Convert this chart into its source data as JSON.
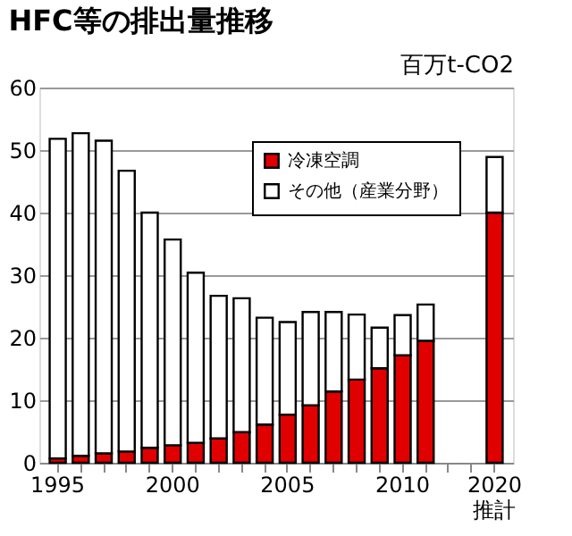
{
  "chart_data": {
    "type": "bar",
    "title": "HFC等の排出量推移",
    "ylabel": "百万t-CO2",
    "categories": [
      "1995",
      null,
      null,
      null,
      null,
      "2000",
      null,
      null,
      null,
      null,
      "2005",
      null,
      null,
      null,
      null,
      "2010",
      null,
      null,
      null,
      "2020 推計"
    ],
    "stacked": true,
    "series": [
      {
        "name": "冷凍空調",
        "color": "#e00000",
        "values": [
          0.7,
          1.1,
          1.5,
          1.8,
          2.4,
          2.8,
          3.2,
          3.9,
          4.9,
          6.1,
          7.7,
          9.2,
          11.4,
          13.3,
          15.1,
          17.2,
          19.5,
          null,
          null,
          40
        ]
      },
      {
        "name": "その他（産業分野）",
        "color": "#ffffff",
        "values": [
          51.1,
          51.6,
          50.0,
          44.9,
          37.6,
          32.9,
          27.2,
          22.8,
          21.4,
          17.1,
          14.8,
          14.9,
          12.7,
          10.4,
          6.5,
          6.4,
          5.8,
          null,
          null,
          8.9
        ]
      }
    ],
    "ylim": [
      0,
      60
    ],
    "yticks": [
      0,
      10,
      20,
      30,
      40,
      50,
      60
    ],
    "grid": "y",
    "legend": "top right"
  }
}
